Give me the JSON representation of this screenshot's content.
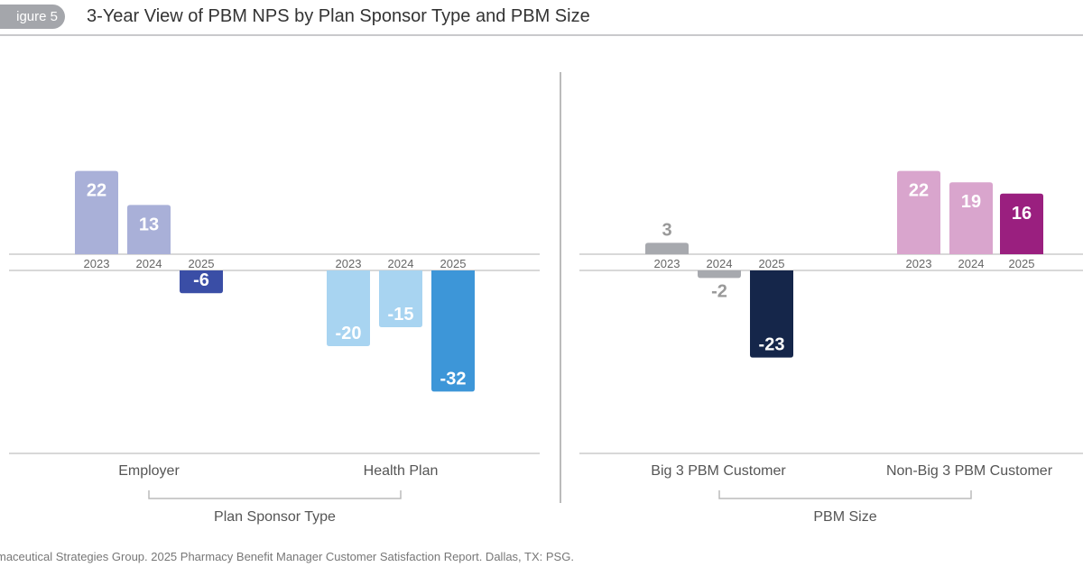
{
  "figure_label": "igure 5",
  "title": "3-Year View of PBM NPS by Plan Sponsor Type and PBM Size",
  "source": "maceutical Strategies Group. 2025 Pharmacy Benefit Manager Customer Satisfaction Report. Dallas, TX: PSG.",
  "chart_data": {
    "type": "bar",
    "title": "3-Year View of PBM NPS by Plan Sponsor Type and PBM Size",
    "years": [
      "2023",
      "2024",
      "2025"
    ],
    "panels": [
      {
        "group_label": "Plan Sponsor Type",
        "categories": [
          {
            "name": "Employer",
            "values": [
              22,
              13,
              -6
            ],
            "colors": [
              "#a9b0d8",
              "#a9b0d8",
              "#3a4ea6"
            ]
          },
          {
            "name": "Health Plan",
            "values": [
              -20,
              -15,
              -32
            ],
            "colors": [
              "#a8d4f1",
              "#a8d4f1",
              "#3d96d8"
            ]
          }
        ]
      },
      {
        "group_label": "PBM Size",
        "categories": [
          {
            "name": "Big 3 PBM Customer",
            "values": [
              3,
              -2,
              -23
            ],
            "colors": [
              "#a7a9ae",
              "#a7a9ae",
              "#15264a"
            ]
          },
          {
            "name": "Non-Big 3 PBM Customer",
            "values": [
              22,
              19,
              16
            ],
            "colors": [
              "#d9a5cd",
              "#d9a5cd",
              "#9a1f7f"
            ]
          }
        ]
      }
    ],
    "grid": false,
    "legend": "none"
  }
}
